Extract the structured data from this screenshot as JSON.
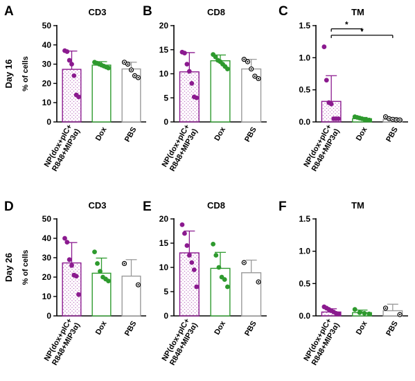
{
  "colors": {
    "np": "#8b1a8f",
    "dox": "#2e9a2e",
    "pbs": "#9a9a9a",
    "axis": "#000000"
  },
  "chart_data": [
    {
      "panel": "A",
      "title": "CD3",
      "type": "bar",
      "row_label": "Day 16",
      "ylabel": "% of cells",
      "ylim": [
        0,
        50
      ],
      "yticks": [
        "0",
        "10",
        "20",
        "30",
        "40",
        "50"
      ],
      "categories": [
        "NP(dox+pIC+\nR848+MIP3α)",
        "Dox",
        "PBS"
      ],
      "values": [
        27.3,
        29.5,
        27.5
      ],
      "errors": [
        9.5,
        1.8,
        3.5
      ],
      "points": [
        [
          37,
          36.5,
          32,
          30,
          24,
          14,
          13
        ],
        [
          31,
          30.5,
          30,
          29.5,
          29,
          28.5,
          28
        ],
        [
          31,
          30,
          27,
          24,
          23
        ]
      ],
      "significance": []
    },
    {
      "panel": "B",
      "title": "CD8",
      "type": "bar",
      "row_label": "",
      "ylabel": "",
      "ylim": [
        0,
        20
      ],
      "yticks": [
        "0",
        "5",
        "10",
        "15",
        "20"
      ],
      "categories": [
        "NP(dox+pIC+\nR848+MIP3α)",
        "Dox",
        "PBS"
      ],
      "values": [
        10.4,
        12.7,
        11.0
      ],
      "errors": [
        4.0,
        1.2,
        2.0
      ],
      "points": [
        [
          14.5,
          14.3,
          12.0,
          10.5,
          8.0,
          5.2,
          5.0
        ],
        [
          14.0,
          13.5,
          12.8,
          12.5,
          12.0,
          11.5,
          11.0
        ],
        [
          13.0,
          12.5,
          11.0,
          9.5,
          9.0
        ]
      ],
      "significance": []
    },
    {
      "panel": "C",
      "title": "TM",
      "type": "bar",
      "row_label": "",
      "ylabel": "",
      "ylim": [
        0,
        1.5
      ],
      "yticks": [
        "0.0",
        "0.5",
        "1.0",
        "1.5"
      ],
      "categories": [
        "NP(dox+pIC+\nR848+MIP3α)",
        "Dox",
        "PBS"
      ],
      "values": [
        0.32,
        0.05,
        0.04
      ],
      "errors": [
        0.4,
        0.02,
        0.03
      ],
      "points": [
        [
          1.17,
          0.65,
          0.3,
          0.28,
          0.05,
          0.05,
          0.05
        ],
        [
          0.08,
          0.07,
          0.06,
          0.05,
          0.04,
          0.03,
          0.03
        ],
        [
          0.08,
          0.05,
          0.04,
          0.03,
          0.03
        ]
      ],
      "significance": [
        {
          "from": 0,
          "to": 1,
          "y": 1.45,
          "label": "*"
        },
        {
          "from": 0,
          "to": 2,
          "y": 1.35,
          "label": "*"
        }
      ]
    },
    {
      "panel": "D",
      "title": "CD3",
      "type": "bar",
      "row_label": "Day 26",
      "ylabel": "% of cells",
      "ylim": [
        0,
        50
      ],
      "yticks": [
        "0",
        "10",
        "20",
        "30",
        "40",
        "50"
      ],
      "categories": [
        "NP(dox+pIC+\nR848+MIP3α)",
        "Dox",
        "PBS"
      ],
      "values": [
        27.3,
        22.0,
        20.5
      ],
      "errors": [
        10.5,
        7.8,
        8.5
      ],
      "points": [
        [
          40,
          38,
          29,
          26,
          21,
          20.5,
          11
        ],
        [
          33,
          27,
          23,
          20,
          19,
          18
        ],
        [
          27,
          16
        ]
      ],
      "significance": []
    },
    {
      "panel": "E",
      "title": "CD8",
      "type": "bar",
      "row_label": "",
      "ylabel": "",
      "ylim": [
        0,
        20
      ],
      "yticks": [
        "0",
        "5",
        "10",
        "15",
        "20"
      ],
      "categories": [
        "NP(dox+pIC+\nR848+MIP3α)",
        "Dox",
        "PBS"
      ],
      "values": [
        13.0,
        9.8,
        8.9
      ],
      "errors": [
        4.5,
        3.3,
        2.6
      ],
      "points": [
        [
          18.8,
          17.0,
          14.5,
          12.5,
          11.0,
          9.5,
          6.0
        ],
        [
          14.8,
          12.5,
          10.0,
          8.0,
          7.5,
          6.0
        ],
        [
          11.0,
          7.0
        ]
      ],
      "significance": []
    },
    {
      "panel": "F",
      "title": "TM",
      "type": "bar",
      "row_label": "",
      "ylabel": "",
      "ylim": [
        0,
        1.5
      ],
      "yticks": [
        "0.0",
        "0.5",
        "1.0",
        "1.5"
      ],
      "categories": [
        "NP(dox+pIC+\nR848+MIP3α)",
        "Dox",
        "PBS"
      ],
      "values": [
        0.06,
        0.05,
        0.08
      ],
      "errors": [
        0.05,
        0.04,
        0.1
      ],
      "points": [
        [
          0.14,
          0.12,
          0.1,
          0.08,
          0.06,
          0.04,
          0.03
        ],
        [
          0.1,
          0.05,
          0.04,
          0.03
        ],
        [
          0.12,
          0.02
        ]
      ],
      "significance": []
    }
  ]
}
